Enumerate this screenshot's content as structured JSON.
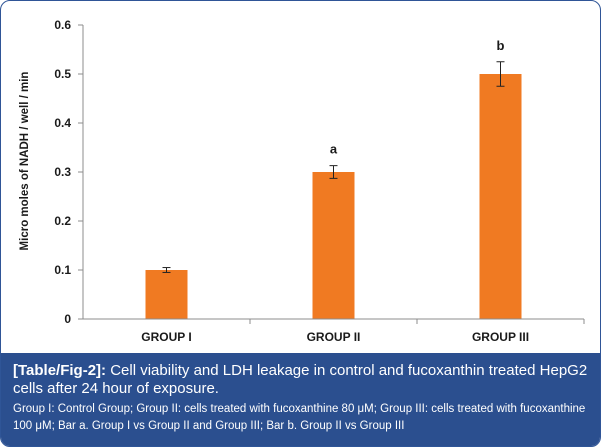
{
  "chart_data": {
    "type": "bar",
    "categories": [
      "GROUP I",
      "GROUP II",
      "GROUP III"
    ],
    "values": [
      0.1,
      0.3,
      0.5
    ],
    "errors": [
      0.005,
      0.013,
      0.025
    ],
    "annotations": [
      "",
      "a",
      "b"
    ],
    "ylabel": "Micro moles of NADH / well / min",
    "xlabel": "",
    "ylim": [
      0,
      0.6
    ],
    "yticks": [
      "0",
      "0.1",
      "0.2",
      "0.3",
      "0.4",
      "0.5",
      "0.6"
    ],
    "colors": {
      "bar": "#f07a22",
      "error": "#222222",
      "axis": "#8c8c8c"
    }
  },
  "caption": {
    "ref": "[Table/Fig-2]:",
    "title": "Cell viability and LDH leakage in control and fucoxanthin treated HepG2 cells after 24 hour of exposure.",
    "note": "Group I: Control Group; Group II: cells treated with fucoxanthine 80 μM; Group III: cells treated with fucoxanthine 100 μM; Bar a. Group I vs Group II and Group III; Bar b. Group II vs Group III",
    "background": "#2b4f8f"
  }
}
